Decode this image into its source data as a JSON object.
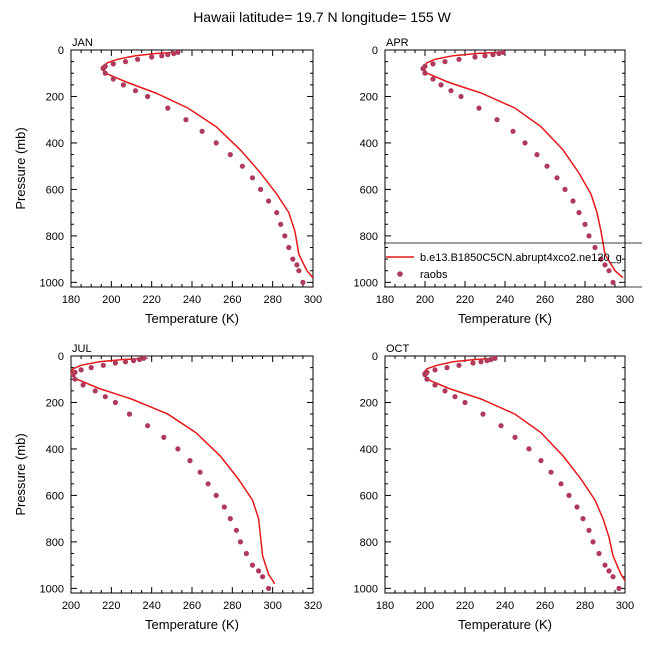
{
  "title": "Hawaii  latitude= 19.7 N longitude= 155 W",
  "legend": {
    "model_label": "b.e13.B1850C5CN.abrupt4xco2.ne120_g",
    "obs_label": "raobs"
  },
  "colors": {
    "model": "#e41a1c",
    "obs": "#b03a5b",
    "axis": "#000000"
  },
  "chart_data": [
    {
      "type": "scatter",
      "panel": "JAN",
      "title": "JAN",
      "xlabel": "Temperature (K)",
      "ylabel": "Pressure (mb)",
      "xlim": [
        180,
        300
      ],
      "ylim": [
        1020,
        0
      ],
      "xticks": [
        180,
        200,
        220,
        240,
        260,
        280,
        300
      ],
      "yticks": [
        0,
        200,
        400,
        600,
        800,
        1000
      ],
      "series": [
        {
          "kind": "line",
          "x": [
            232,
            222,
            212,
            203,
            198,
            195,
            197,
            208,
            222,
            238,
            252,
            264,
            274,
            282,
            288,
            291,
            293,
            297,
            300
          ],
          "y": [
            10,
            15,
            25,
            40,
            55,
            75,
            100,
            140,
            185,
            250,
            330,
            430,
            530,
            620,
            700,
            780,
            880,
            950,
            980
          ]
        },
        {
          "kind": "points",
          "x": [
            233,
            231,
            228,
            225,
            220,
            213,
            207,
            201,
            197,
            196,
            197,
            201,
            206,
            212,
            218,
            228,
            237,
            245,
            252,
            259,
            265,
            270,
            274,
            278,
            282,
            284,
            286,
            288,
            290,
            292,
            293,
            295
          ],
          "y": [
            10,
            15,
            20,
            25,
            30,
            40,
            50,
            60,
            70,
            80,
            100,
            125,
            150,
            175,
            200,
            250,
            300,
            350,
            400,
            450,
            500,
            550,
            600,
            650,
            700,
            750,
            800,
            850,
            900,
            925,
            950,
            1000
          ]
        }
      ]
    },
    {
      "type": "scatter",
      "panel": "APR",
      "title": "APR",
      "xlabel": "Temperature (K)",
      "ylabel": "",
      "xlim": [
        180,
        300
      ],
      "ylim": [
        1020,
        0
      ],
      "xticks": [
        180,
        200,
        220,
        240,
        260,
        280,
        300
      ],
      "yticks": [
        0,
        200,
        400,
        600,
        800,
        1000
      ],
      "series": [
        {
          "kind": "line",
          "x": [
            238,
            226,
            214,
            205,
            201,
            199,
            201,
            212,
            228,
            245,
            258,
            269,
            277,
            283,
            286,
            288,
            290,
            295,
            299
          ],
          "y": [
            10,
            15,
            25,
            40,
            55,
            75,
            100,
            140,
            185,
            250,
            330,
            430,
            530,
            620,
            700,
            780,
            880,
            950,
            980
          ]
        },
        {
          "kind": "points",
          "x": [
            239,
            237,
            234,
            230,
            225,
            217,
            210,
            204,
            200,
            199,
            200,
            204,
            208,
            213,
            218,
            227,
            236,
            244,
            250,
            256,
            261,
            266,
            270,
            274,
            277,
            280,
            282,
            285,
            288,
            290,
            292,
            294
          ],
          "y": [
            10,
            15,
            20,
            25,
            30,
            40,
            50,
            60,
            70,
            80,
            100,
            125,
            150,
            175,
            200,
            250,
            300,
            350,
            400,
            450,
            500,
            550,
            600,
            650,
            700,
            750,
            800,
            850,
            900,
            925,
            950,
            1000
          ]
        }
      ]
    },
    {
      "type": "scatter",
      "panel": "JUL",
      "title": "JUL",
      "xlabel": "Temperature (K)",
      "ylabel": "Pressure (mb)",
      "xlim": [
        200,
        320
      ],
      "ylim": [
        1020,
        0
      ],
      "xticks": [
        200,
        220,
        240,
        260,
        280,
        300,
        320
      ],
      "yticks": [
        0,
        200,
        400,
        600,
        800,
        1000
      ],
      "series": [
        {
          "kind": "line",
          "x": [
            238,
            226,
            214,
            205,
            201,
            200,
            203,
            214,
            230,
            248,
            262,
            274,
            283,
            290,
            293,
            294,
            295,
            298,
            301
          ],
          "y": [
            10,
            15,
            25,
            40,
            55,
            75,
            100,
            140,
            185,
            250,
            330,
            430,
            530,
            620,
            700,
            780,
            860,
            940,
            980
          ]
        },
        {
          "kind": "points",
          "x": [
            236,
            234,
            231,
            227,
            222,
            216,
            210,
            205,
            202,
            201,
            202,
            206,
            212,
            217,
            222,
            229,
            238,
            246,
            253,
            259,
            264,
            268,
            272,
            276,
            279,
            282,
            284,
            287,
            290,
            293,
            295,
            298
          ],
          "y": [
            10,
            15,
            20,
            25,
            30,
            40,
            50,
            60,
            70,
            80,
            100,
            125,
            150,
            175,
            200,
            250,
            300,
            350,
            400,
            450,
            500,
            550,
            600,
            650,
            700,
            750,
            800,
            850,
            900,
            925,
            950,
            1000
          ]
        }
      ]
    },
    {
      "type": "scatter",
      "panel": "OCT",
      "title": "OCT",
      "xlabel": "Temperature (K)",
      "ylabel": "",
      "xlim": [
        180,
        300
      ],
      "ylim": [
        1020,
        0
      ],
      "xticks": [
        180,
        200,
        220,
        240,
        260,
        280,
        300
      ],
      "yticks": [
        0,
        200,
        400,
        600,
        800,
        1000
      ],
      "series": [
        {
          "kind": "line",
          "x": [
            236,
            225,
            214,
            206,
            201,
            199,
            201,
            212,
            228,
            245,
            258,
            269,
            278,
            285,
            289,
            292,
            294,
            298,
            301
          ],
          "y": [
            10,
            15,
            25,
            40,
            55,
            75,
            100,
            140,
            185,
            250,
            330,
            430,
            530,
            620,
            700,
            780,
            860,
            940,
            980
          ]
        },
        {
          "kind": "points",
          "x": [
            235,
            233,
            231,
            228,
            224,
            217,
            211,
            205,
            201,
            200,
            201,
            205,
            210,
            215,
            220,
            229,
            238,
            245,
            252,
            258,
            263,
            268,
            272,
            276,
            279,
            282,
            284,
            287,
            290,
            292,
            294,
            297
          ],
          "y": [
            10,
            15,
            20,
            25,
            30,
            40,
            50,
            60,
            70,
            80,
            100,
            125,
            150,
            175,
            200,
            250,
            300,
            350,
            400,
            450,
            500,
            550,
            600,
            650,
            700,
            750,
            800,
            850,
            900,
            925,
            950,
            1000
          ]
        }
      ]
    }
  ]
}
